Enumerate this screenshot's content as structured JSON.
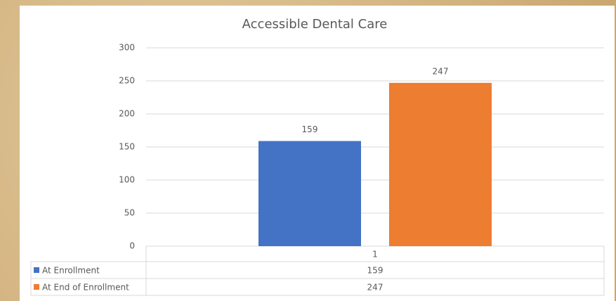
{
  "chart_data": {
    "type": "bar",
    "title": "Accessible Dental Care",
    "categories": [
      "1"
    ],
    "series": [
      {
        "name": "At Enrollment",
        "color": "#4472c4",
        "values": [
          159
        ]
      },
      {
        "name": "At End of Enrollment",
        "color": "#ed7d31",
        "values": [
          247
        ]
      }
    ],
    "ylim": [
      0,
      300
    ],
    "yticks": [
      0,
      50,
      100,
      150,
      200,
      250,
      300
    ],
    "grid": true,
    "legend": "data-table"
  }
}
